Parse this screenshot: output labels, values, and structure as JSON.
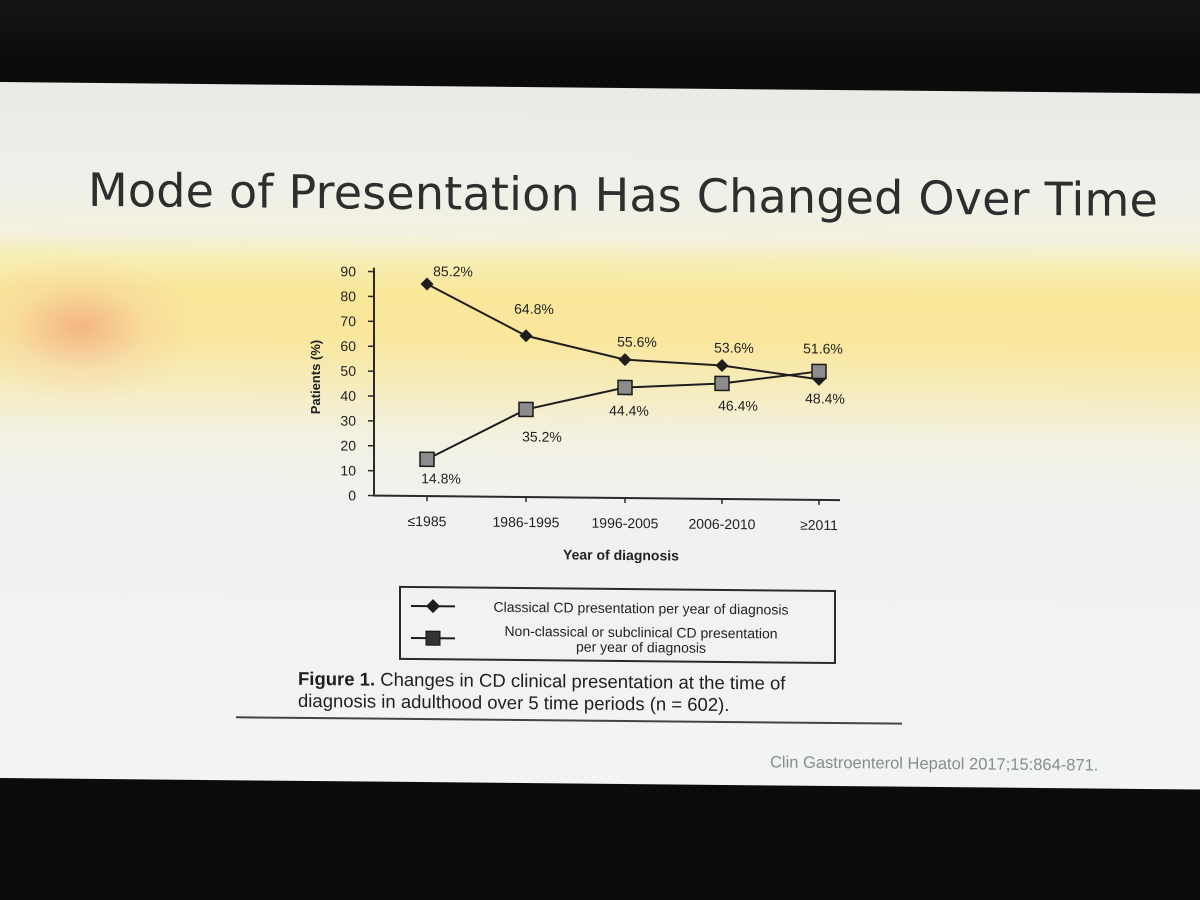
{
  "slide": {
    "title": "Mode of Presentation Has Changed Over Time",
    "source": "Clin Gastroenterol Hepatol 2017;15:864-871."
  },
  "legend": {
    "classical": "Classical CD presentation per year of diagnosis",
    "nonclassical_line1": "Non-classical or subclinical CD presentation",
    "nonclassical_line2": "per year of diagnosis"
  },
  "caption": {
    "label": "Figure 1.",
    "line1": " Changes in CD clinical presentation at the time of",
    "line2": "diagnosis in adulthood over 5 time periods (n = 602)."
  },
  "chart_data": {
    "type": "line",
    "title": "",
    "xlabel": "Year of diagnosis",
    "ylabel": "Patients (%)",
    "ylim": [
      0,
      90
    ],
    "yticks": [
      0,
      10,
      20,
      30,
      40,
      50,
      60,
      70,
      80,
      90
    ],
    "categories": [
      "≤1985",
      "1986-1995",
      "1996-2005",
      "2006-2010",
      "≥2011"
    ],
    "series": [
      {
        "name": "Classical CD presentation per year of diagnosis",
        "marker": "diamond",
        "values": [
          85.2,
          64.8,
          55.6,
          53.6,
          48.4
        ],
        "labels": [
          "85.2%",
          "64.8%",
          "55.6%",
          "53.6%",
          "48.4%"
        ]
      },
      {
        "name": "Non-classical or subclinical CD presentation per year of diagnosis",
        "marker": "square",
        "values": [
          14.8,
          35.2,
          44.4,
          46.4,
          51.6
        ],
        "labels": [
          "14.8%",
          "35.2%",
          "44.4%",
          "46.4%",
          "51.6%"
        ]
      }
    ],
    "colors": {
      "classical": "#1e1e1e",
      "nonclassical_fill": "#8c8c8c",
      "axis": "#2a2a2a"
    },
    "grid": false,
    "legend": "bottom"
  }
}
